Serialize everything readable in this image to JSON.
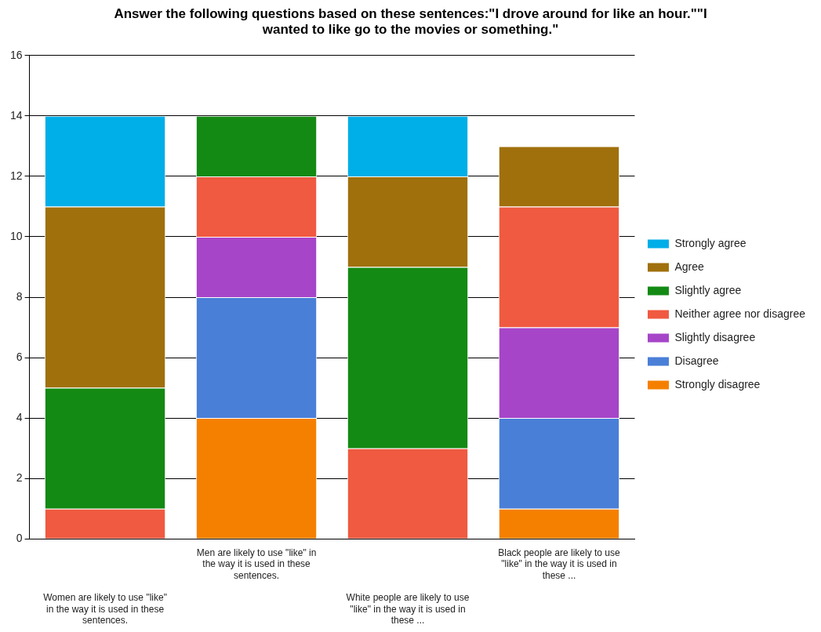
{
  "chart_data": {
    "type": "bar",
    "stacked": true,
    "title": "Answer the following questions based on these sentences:\"I drove around for like an hour.\"\"I wanted to like go to the movies or something.\"",
    "categories": [
      "Women are likely to use \"like\" in the way it is used in these sentences.",
      "Men are likely to use \"like\" in the way it is used in these sentences.",
      "White people are likely to use \"like\" in the way it is used in these ...",
      "Black people are likely to use \"like\" in the way it is used in these ..."
    ],
    "series": [
      {
        "name": "Strongly disagree",
        "color": "#f58000",
        "values": [
          null,
          4,
          null,
          1
        ]
      },
      {
        "name": "Disagree",
        "color": "#4a7fd8",
        "values": [
          null,
          4,
          null,
          3
        ]
      },
      {
        "name": "Slightly disagree",
        "color": "#a645c8",
        "values": [
          null,
          2,
          null,
          3
        ]
      },
      {
        "name": "Neither agree nor disagree",
        "color": "#f05a40",
        "values": [
          1,
          2,
          3,
          4
        ]
      },
      {
        "name": "Slightly agree",
        "color": "#138a13",
        "values": [
          4,
          2,
          6,
          null
        ]
      },
      {
        "name": "Agree",
        "color": "#a0700c",
        "values": [
          6,
          null,
          3,
          2
        ]
      },
      {
        "name": "Strongly agree",
        "color": "#00aee8",
        "values": [
          3,
          null,
          2,
          null
        ]
      }
    ],
    "ylim": [
      0,
      16
    ],
    "yticks": [
      0,
      2,
      4,
      6,
      8,
      10,
      12,
      14,
      16
    ],
    "grid": "y",
    "legend": "right"
  }
}
